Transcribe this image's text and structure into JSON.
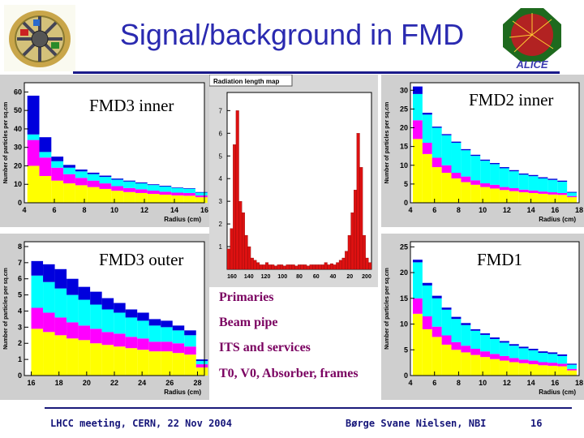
{
  "slide": {
    "title": "Signal/background in FMD",
    "footer_left": "LHCC meeting, CERN, 22 Nov 2004",
    "footer_center": "Børge Svane Nielsen, NBI",
    "page_number": "16"
  },
  "logos": {
    "left": "detector-logo",
    "right": "ALICE"
  },
  "labels": {
    "fmd3_inner": "FMD3 inner",
    "fmd2_inner": "FMD2 inner",
    "fmd3_outer": "FMD3 outer",
    "fmd1": "FMD1"
  },
  "legend": {
    "items": [
      {
        "label": "Primaries",
        "color": "#ffff00"
      },
      {
        "label": "Beam pipe",
        "color": "#ff00ff"
      },
      {
        "label": "ITS and services",
        "color": "#00ffff"
      },
      {
        "label": "T0, V0, Absorber, frames",
        "color": "#0000dd"
      }
    ]
  },
  "colors": {
    "primaries": "#ffff00",
    "beam_pipe": "#ff00ff",
    "its": "#00ffff",
    "t0v0": "#0000dd",
    "radlen": "#dd1111"
  },
  "chart_data": [
    {
      "id": "fmd3-inner",
      "type": "bar",
      "stacked": true,
      "xlabel": "Radius (cm)",
      "ylabel": "Number of particles per sq.cm",
      "xlim": [
        4,
        16
      ],
      "ylim": [
        0,
        65
      ],
      "xticks": [
        4,
        6,
        8,
        10,
        12,
        14,
        16
      ],
      "yticks": [
        0,
        10,
        20,
        30,
        40,
        50,
        60
      ],
      "x_start": 4.2,
      "bin_width": 0.8,
      "series": [
        {
          "name": "Primaries",
          "color": "#ffff00",
          "values": [
            20,
            14.5,
            12,
            10.5,
            9.5,
            8.5,
            7.5,
            6.5,
            5.8,
            5.3,
            4.8,
            4.4,
            4.0,
            3.8,
            3.0
          ]
        },
        {
          "name": "Beam pipe",
          "color": "#ff00ff",
          "values": [
            14,
            10,
            7,
            5,
            4,
            3.5,
            3,
            2.5,
            2.2,
            2,
            1.8,
            1.6,
            1.5,
            1.5,
            1.0
          ]
        },
        {
          "name": "ITS and services",
          "color": "#00ffff",
          "values": [
            3,
            3,
            3.5,
            3.5,
            3.5,
            3.5,
            3.5,
            3.5,
            3.5,
            3.2,
            3.0,
            2.8,
            2.5,
            2.3,
            1.5
          ]
        },
        {
          "name": "T0, V0, Absorber, frames",
          "color": "#0000dd",
          "values": [
            21,
            8,
            2.5,
            1.5,
            1,
            0.8,
            0.7,
            0.6,
            0.5,
            0.5,
            0.4,
            0.4,
            0.3,
            0.3,
            0.3
          ]
        }
      ]
    },
    {
      "id": "fmd2-inner",
      "type": "bar",
      "stacked": true,
      "xlabel": "Radius (cm)",
      "ylabel": "Number of particles per sq.cm",
      "xlim": [
        4,
        18
      ],
      "ylim": [
        0,
        32
      ],
      "xticks": [
        4,
        6,
        8,
        10,
        12,
        14,
        16,
        18
      ],
      "yticks": [
        0,
        5,
        10,
        15,
        20,
        25,
        30
      ],
      "x_start": 4.2,
      "bin_width": 0.8,
      "series": [
        {
          "name": "Primaries",
          "color": "#ffff00",
          "values": [
            17,
            13,
            9.5,
            8,
            6.5,
            5.5,
            4.8,
            4.2,
            3.8,
            3.4,
            3.1,
            2.8,
            2.6,
            2.4,
            2.2,
            2.1,
            1.5
          ]
        },
        {
          "name": "Beam pipe",
          "color": "#ff00ff",
          "values": [
            5,
            3,
            2.5,
            2,
            1.5,
            1.5,
            1.2,
            1,
            1,
            0.8,
            0.8,
            0.7,
            0.7,
            0.6,
            0.6,
            0.5,
            0.3
          ]
        },
        {
          "name": "ITS and services",
          "color": "#00ffff",
          "values": [
            7,
            7.5,
            8,
            8,
            8,
            7,
            6.5,
            6,
            5.5,
            5,
            4.5,
            4,
            3.8,
            3.5,
            3.3,
            3.0,
            0.9
          ]
        },
        {
          "name": "T0, V0, Absorber, frames",
          "color": "#0000dd",
          "values": [
            2,
            0.5,
            0.3,
            0.3,
            0.3,
            0.3,
            0.3,
            0.3,
            0.3,
            0.3,
            0.3,
            0.3,
            0.3,
            0.3,
            0.3,
            0.3,
            0.2
          ]
        }
      ]
    },
    {
      "id": "fmd3-outer",
      "type": "bar",
      "stacked": true,
      "xlabel": "Radius (cm)",
      "ylabel": "Number of particles per sq.cm",
      "xlim": [
        15.5,
        28.5
      ],
      "ylim": [
        0,
        8.3
      ],
      "xticks": [
        16,
        18,
        20,
        22,
        24,
        26,
        28
      ],
      "yticks": [
        0,
        1,
        2,
        3,
        4,
        5,
        6,
        7,
        8
      ],
      "x_start": 16,
      "bin_width": 0.85,
      "series": [
        {
          "name": "Primaries",
          "color": "#ffff00",
          "values": [
            2.9,
            2.7,
            2.5,
            2.3,
            2.2,
            2.0,
            1.9,
            1.8,
            1.7,
            1.6,
            1.5,
            1.5,
            1.4,
            1.3,
            0.5
          ]
        },
        {
          "name": "Beam pipe",
          "color": "#ff00ff",
          "values": [
            1.3,
            1.2,
            1.1,
            1.0,
            0.9,
            0.9,
            0.8,
            0.8,
            0.7,
            0.7,
            0.6,
            0.6,
            0.6,
            0.5,
            0.2
          ]
        },
        {
          "name": "ITS and services",
          "color": "#00ffff",
          "values": [
            2.0,
            1.9,
            1.8,
            1.7,
            1.6,
            1.5,
            1.4,
            1.3,
            1.2,
            1.1,
            1.0,
            0.9,
            0.8,
            0.7,
            0.2
          ]
        },
        {
          "name": "T0, V0, Absorber, frames",
          "color": "#0000dd",
          "values": [
            0.9,
            1.1,
            1.2,
            1.0,
            0.8,
            0.8,
            0.7,
            0.6,
            0.5,
            0.5,
            0.4,
            0.4,
            0.3,
            0.3,
            0.1
          ]
        }
      ]
    },
    {
      "id": "fmd1",
      "type": "bar",
      "stacked": true,
      "xlabel": "Radius (cm)",
      "ylabel": "Number of particles per sq.cm",
      "xlim": [
        4,
        18
      ],
      "ylim": [
        0,
        26
      ],
      "xticks": [
        4,
        6,
        8,
        10,
        12,
        14,
        16,
        18
      ],
      "yticks": [
        0,
        5,
        10,
        15,
        20,
        25
      ],
      "x_start": 4.2,
      "bin_width": 0.8,
      "series": [
        {
          "name": "Primaries",
          "color": "#ffff00",
          "values": [
            12,
            9,
            7.5,
            6,
            5,
            4.5,
            4,
            3.6,
            3.2,
            2.9,
            2.6,
            2.4,
            2.2,
            2.0,
            1.9,
            1.8,
            1.0
          ]
        },
        {
          "name": "Beam pipe",
          "color": "#ff00ff",
          "values": [
            3,
            2.5,
            2,
            1.8,
            1.5,
            1.3,
            1.2,
            1.1,
            1,
            0.9,
            0.8,
            0.7,
            0.7,
            0.6,
            0.6,
            0.5,
            0.3
          ]
        },
        {
          "name": "ITS and services",
          "color": "#00ffff",
          "values": [
            7,
            6,
            5.5,
            5,
            4.5,
            4,
            3.5,
            3.2,
            2.9,
            2.6,
            2.4,
            2.2,
            2.0,
            1.8,
            1.7,
            1.5,
            0.8
          ]
        },
        {
          "name": "T0, V0, Absorber, frames",
          "color": "#0000dd",
          "values": [
            0.5,
            0.5,
            0.5,
            0.4,
            0.4,
            0.4,
            0.3,
            0.3,
            0.3,
            0.3,
            0.3,
            0.3,
            0.3,
            0.3,
            0.3,
            0.3,
            0.2
          ]
        }
      ]
    },
    {
      "id": "radiation-length",
      "type": "bar",
      "title": "Radiation length map",
      "ylim": [
        0,
        7.8
      ],
      "yticks": [
        1,
        2,
        3,
        4,
        5,
        6,
        7
      ],
      "xticks": [
        "160",
        "140",
        "120",
        "100",
        "80",
        "60",
        "40",
        "20",
        "200"
      ],
      "values": [
        0.9,
        1.8,
        5.5,
        7.0,
        3.0,
        2.5,
        1.5,
        1.0,
        0.5,
        0.4,
        0.3,
        0.2,
        0.2,
        0.3,
        0.2,
        0.2,
        0.15,
        0.2,
        0.2,
        0.15,
        0.2,
        0.2,
        0.2,
        0.15,
        0.2,
        0.2,
        0.2,
        0.15,
        0.2,
        0.2,
        0.2,
        0.2,
        0.2,
        0.3,
        0.2,
        0.25,
        0.2,
        0.3,
        0.4,
        0.5,
        0.8,
        1.5,
        2.5,
        3.5,
        6.0,
        4.5,
        1.5,
        0.5,
        0.3
      ]
    }
  ]
}
